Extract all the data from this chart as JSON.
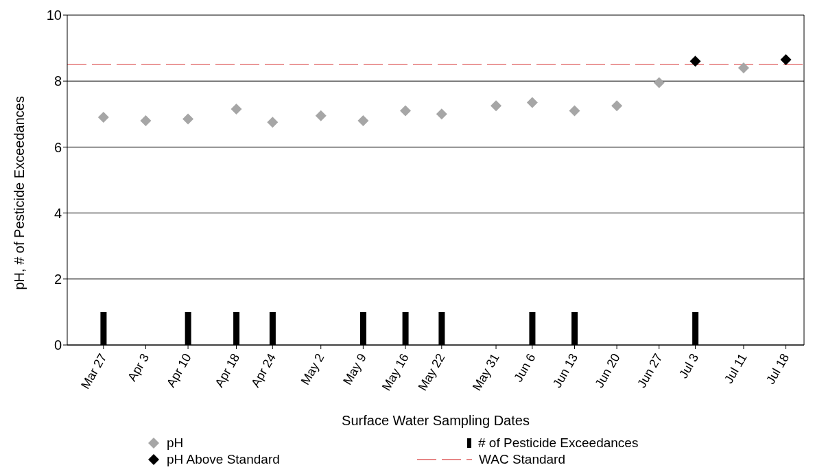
{
  "chart_data": {
    "type": "scatter",
    "xlabel": "Surface Water Sampling Dates",
    "ylabel": "pH, # of Pesticide Exceedances",
    "x": [
      "--03-27",
      "--04-03",
      "--04-10",
      "--04-18",
      "--04-24",
      "--05-02",
      "--05-09",
      "--05-16",
      "--05-22",
      "--05-31",
      "--06-06",
      "--06-13",
      "--06-20",
      "--06-27",
      "--07-03",
      "--07-11",
      "--07-18"
    ],
    "series": [
      {
        "name": "pH",
        "color": "#a6a6a6",
        "values": [
          6.9,
          6.8,
          6.85,
          7.15,
          6.75,
          6.95,
          6.8,
          7.1,
          7.0,
          7.25,
          7.35,
          7.1,
          7.25,
          7.95,
          null,
          8.4,
          null
        ]
      },
      {
        "name": "pH Above Standard",
        "color": "#000000",
        "values": [
          null,
          null,
          null,
          null,
          null,
          null,
          null,
          null,
          null,
          null,
          null,
          null,
          null,
          null,
          8.6,
          null,
          8.65
        ]
      },
      {
        "name": "# of Pesticide Exceedances",
        "type": "bar",
        "color": "#000000",
        "values": [
          1,
          null,
          1,
          1,
          1,
          null,
          1,
          1,
          1,
          null,
          1,
          1,
          null,
          null,
          1,
          null,
          null
        ]
      }
    ],
    "ref_lines": [
      {
        "axis": "y",
        "value": 8.5,
        "label": "WAC Standard",
        "color": "#e06060",
        "line_style": "dashed"
      }
    ],
    "xlim": [
      "--03-21",
      "--07-21"
    ],
    "xticks": [
      {
        "value": "--03-27",
        "label": "Mar 27"
      },
      {
        "value": "--04-03",
        "label": "Apr 3"
      },
      {
        "value": "--04-10",
        "label": "Apr 10"
      },
      {
        "value": "--04-18",
        "label": "Apr 18"
      },
      {
        "value": "--04-24",
        "label": "Apr 24"
      },
      {
        "value": "--05-02",
        "label": "May 2"
      },
      {
        "value": "--05-09",
        "label": "May 9"
      },
      {
        "value": "--05-16",
        "label": "May 16"
      },
      {
        "value": "--05-22",
        "label": "May 22"
      },
      {
        "value": "--05-31",
        "label": "May 31"
      },
      {
        "value": "--06-06",
        "label": "Jun 6"
      },
      {
        "value": "--06-13",
        "label": "Jun 13"
      },
      {
        "value": "--06-20",
        "label": "Jun 20"
      },
      {
        "value": "--06-27",
        "label": "Jun 27"
      },
      {
        "value": "--07-03",
        "label": "Jul 3"
      },
      {
        "value": "--07-11",
        "label": "Jul 11"
      },
      {
        "value": "--07-18",
        "label": "Jul 18"
      }
    ],
    "ylim": [
      0,
      10
    ],
    "yticks": [
      0,
      2,
      4,
      6,
      8,
      10
    ],
    "grid": "y",
    "legend": "bottom",
    "marker": "diamond"
  }
}
